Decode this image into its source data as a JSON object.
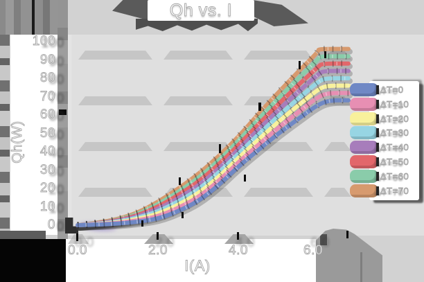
{
  "title": "Qh vs. I",
  "style_colors": {
    "background": "#d2d2d2",
    "plot_background": "#dfdfdf",
    "grid_band": "#c6c6c6",
    "label_fill": "#ffffff",
    "label_outline": "#a4a4a4"
  },
  "chart_data": {
    "type": "line",
    "title": "Qh vs. I",
    "xlabel": "I(A)",
    "ylabel": "Qh(W)",
    "xlim": [
      0,
      6.8
    ],
    "ylim": [
      0,
      100
    ],
    "x_tick_labels": [
      "0.0",
      "2.0",
      "4.0",
      "6.0"
    ],
    "x_tick_values": [
      0,
      2,
      4,
      6
    ],
    "y_tick_labels": [
      "100",
      "90",
      "80",
      "70",
      "60",
      "50",
      "40",
      "30",
      "20",
      "10",
      "0"
    ],
    "y_tick_values": [
      100,
      90,
      80,
      70,
      60,
      50,
      40,
      30,
      20,
      10,
      0
    ],
    "grid": {
      "horizontal_bands_at_qh": [
        93,
        68,
        43,
        18
      ],
      "vertical_gridlines_at_x": [
        2,
        4,
        6
      ]
    },
    "legend_position": "right",
    "x": [
      0,
      0.5,
      1,
      1.5,
      2,
      2.5,
      3,
      3.5,
      4,
      4.5,
      5,
      5.5,
      6
    ],
    "series": [
      {
        "name": "ΔT=0",
        "color": "#6f88c5",
        "values": [
          0,
          0.3,
          0.8,
          1.9,
          3.5,
          7.5,
          13.0,
          21.5,
          32.0,
          41.0,
          50.0,
          58.0,
          66.0
        ],
        "end_value": 68
      },
      {
        "name": "ΔT=10",
        "color": "#e78fb3",
        "values": [
          0,
          0.5,
          1.2,
          2.6,
          4.8,
          9.3,
          15.1,
          23.8,
          34.3,
          43.8,
          53.2,
          61.7,
          70.1
        ],
        "end_value": 72
      },
      {
        "name": "ΔT=20",
        "color": "#f8f19c",
        "values": [
          0,
          0.6,
          1.5,
          3.3,
          6.1,
          11.0,
          17.2,
          26.0,
          36.6,
          46.6,
          56.4,
          65.4,
          74.2
        ],
        "end_value": 76
      },
      {
        "name": "ΔT=30",
        "color": "#97d5e3",
        "values": [
          0,
          0.8,
          1.9,
          4.0,
          7.4,
          12.8,
          19.3,
          28.3,
          38.9,
          49.4,
          59.6,
          69.1,
          78.3
        ],
        "end_value": 80
      },
      {
        "name": "ΔT=40",
        "color": "#a77dbb",
        "values": [
          0,
          0.9,
          2.2,
          4.7,
          8.7,
          14.5,
          21.4,
          30.5,
          41.2,
          52.2,
          62.8,
          72.8,
          82.4
        ],
        "end_value": 84
      },
      {
        "name": "ΔT=50",
        "color": "#e2676b",
        "values": [
          0,
          1.1,
          2.6,
          5.4,
          10.0,
          16.3,
          23.5,
          32.8,
          43.5,
          55.0,
          66.0,
          76.5,
          86.5
        ],
        "end_value": 88
      },
      {
        "name": "ΔT=60",
        "color": "#8accaa",
        "values": [
          0,
          1.2,
          2.9,
          6.1,
          11.3,
          18.0,
          25.6,
          35.0,
          45.8,
          57.8,
          69.2,
          80.2,
          90.6
        ],
        "end_value": 92
      },
      {
        "name": "ΔT=70",
        "color": "#d79a6e",
        "values": [
          0,
          1.4,
          3.3,
          6.8,
          12.6,
          19.8,
          27.7,
          37.3,
          48.1,
          60.6,
          72.4,
          83.9,
          94.7
        ],
        "end_value": 96
      }
    ]
  }
}
